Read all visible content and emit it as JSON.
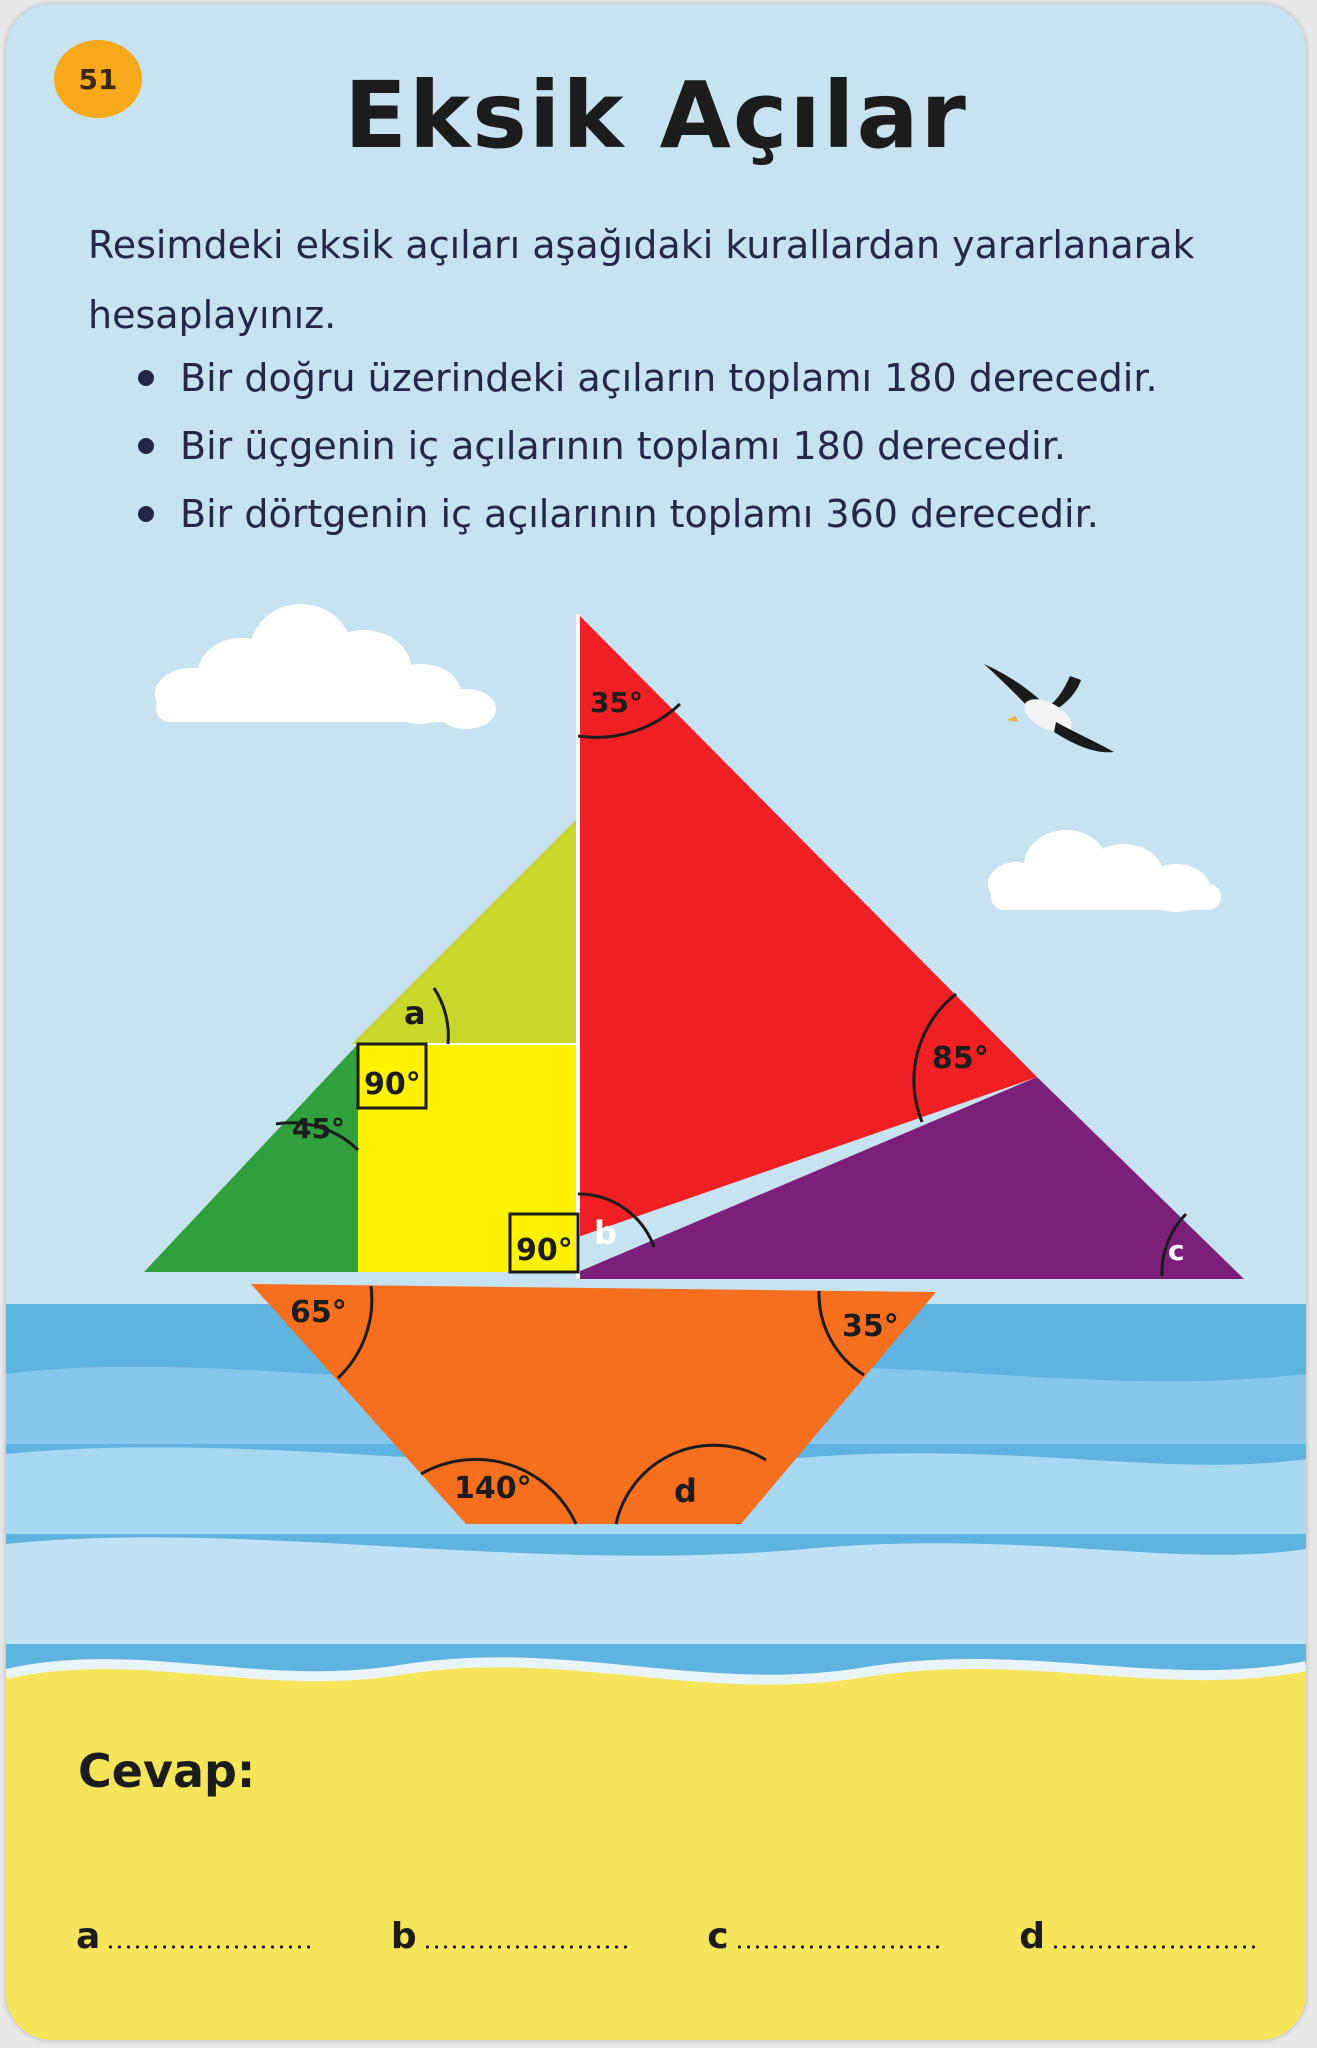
{
  "card": {
    "number": "51",
    "title": "Eksik Açılar",
    "intro": "Resimdeki eksik açıları aşağıdaki kurallardan yararlanarak hesaplayınız.",
    "rules": [
      "Bir doğru üzerindeki açıların toplamı 180 derecedir.",
      "Bir üçgenin iç açılarının toplamı 180 derecedir.",
      "Bir dörtgenin iç açılarının toplamı 360 derecedir."
    ]
  },
  "angles": {
    "red_top": "35°",
    "red_right": "85°",
    "green_left": "45°",
    "yellow_square": "90°",
    "mast_base": "90°",
    "hull_left": "65°",
    "hull_right": "35°",
    "hull_bottom_left": "140°"
  },
  "unknowns": {
    "a": "a",
    "b": "b",
    "c": "c",
    "d": "d"
  },
  "answer": {
    "heading": "Cevap:",
    "labels": [
      "a",
      "b",
      "c",
      "d"
    ]
  },
  "colors": {
    "sky": "#c7e2f0",
    "sea": "#5fb3e0",
    "sand": "#f6e45a",
    "red_sail": "#f01f24",
    "lime_sail": "#c9d62a",
    "yellow_square": "#fff200",
    "green_sail": "#2fa03c",
    "purple_sail": "#7c1f7a",
    "hull": "#f66f1f",
    "badge": "#f7a81b"
  },
  "icons": [
    "cloud-icon",
    "seagull-icon"
  ]
}
